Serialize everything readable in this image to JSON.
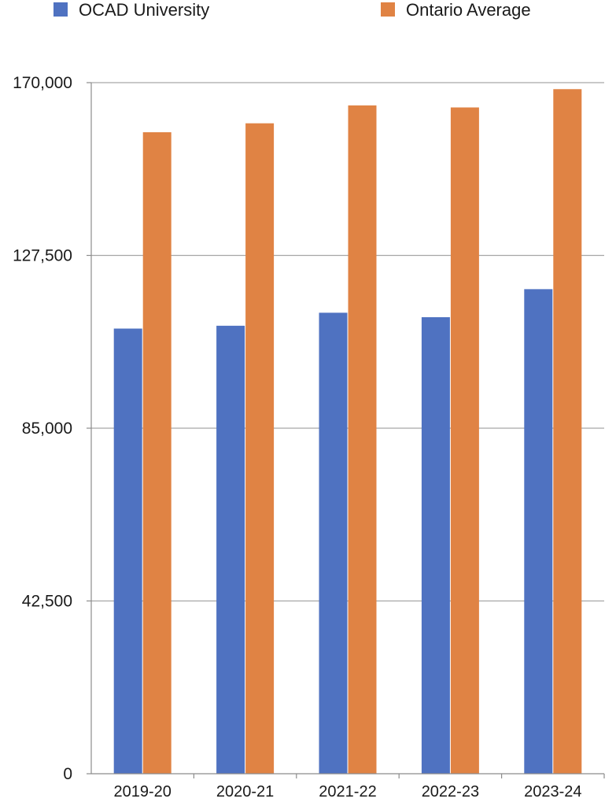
{
  "chart_data": {
    "type": "bar",
    "categories": [
      "2019-20",
      "2020-21",
      "2021-22",
      "2022-23",
      "2023-24"
    ],
    "series": [
      {
        "name": "OCAD University",
        "color": "#4f72c1",
        "values": [
          109500,
          110200,
          113400,
          112300,
          119200
        ]
      },
      {
        "name": "Ontario Average",
        "color": "#e08344",
        "values": [
          157800,
          160000,
          164400,
          163900,
          168400
        ]
      }
    ],
    "yticks": [
      0,
      42500,
      85000,
      127500,
      170000
    ],
    "ytick_labels": [
      "0",
      "42,500",
      "85,000",
      "127,500",
      "170,000"
    ],
    "ylim": [
      0,
      170000
    ],
    "grid": true,
    "legend_position": "top"
  }
}
